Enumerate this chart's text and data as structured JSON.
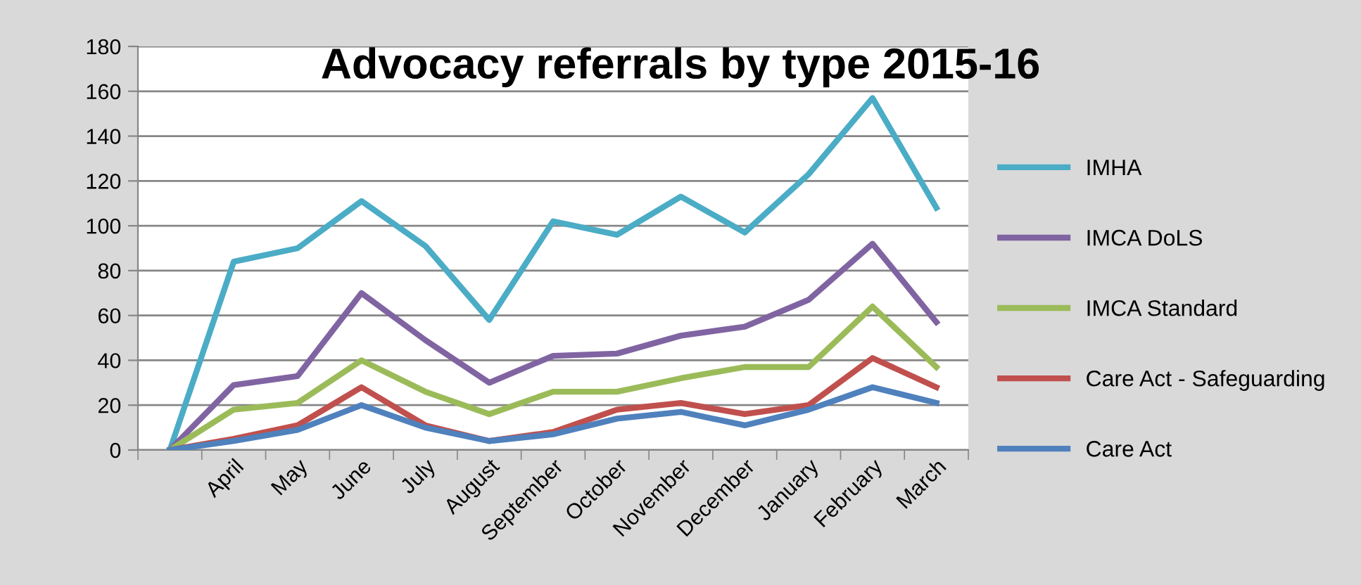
{
  "chart_data": {
    "type": "line",
    "title": "Advocacy referrals by type 2015-16",
    "categories": [
      null,
      "April",
      "May",
      "June",
      "July",
      "August",
      "September",
      "October",
      "November",
      "December",
      "January",
      "February",
      "March"
    ],
    "series": [
      {
        "name": "IMHA",
        "color": "#4bacc6",
        "values": [
          0,
          84,
          90,
          111,
          91,
          58,
          102,
          96,
          113,
          97,
          123,
          157,
          108
        ]
      },
      {
        "name": "IMCA DoLS",
        "color": "#8064a2",
        "values": [
          0,
          29,
          33,
          70,
          49,
          30,
          42,
          43,
          51,
          55,
          67,
          92,
          57
        ]
      },
      {
        "name": "IMCA Standard",
        "color": "#9bbb59",
        "values": [
          0,
          18,
          21,
          40,
          26,
          16,
          26,
          26,
          32,
          37,
          37,
          64,
          37
        ]
      },
      {
        "name": "Care Act - Safeguarding",
        "color": "#c0504d",
        "values": [
          0,
          5,
          11,
          28,
          11,
          4,
          8,
          18,
          21,
          16,
          20,
          41,
          28
        ]
      },
      {
        "name": "Care Act",
        "color": "#4f81bd",
        "values": [
          0,
          4,
          9,
          20,
          10,
          4,
          7,
          14,
          17,
          11,
          18,
          28,
          21
        ]
      }
    ],
    "ylim": [
      0,
      180
    ],
    "yticks": [
      0,
      20,
      40,
      60,
      80,
      100,
      120,
      140,
      160,
      180
    ],
    "grid": "y",
    "legend": "right",
    "marker": "none",
    "line_style": "solid"
  }
}
